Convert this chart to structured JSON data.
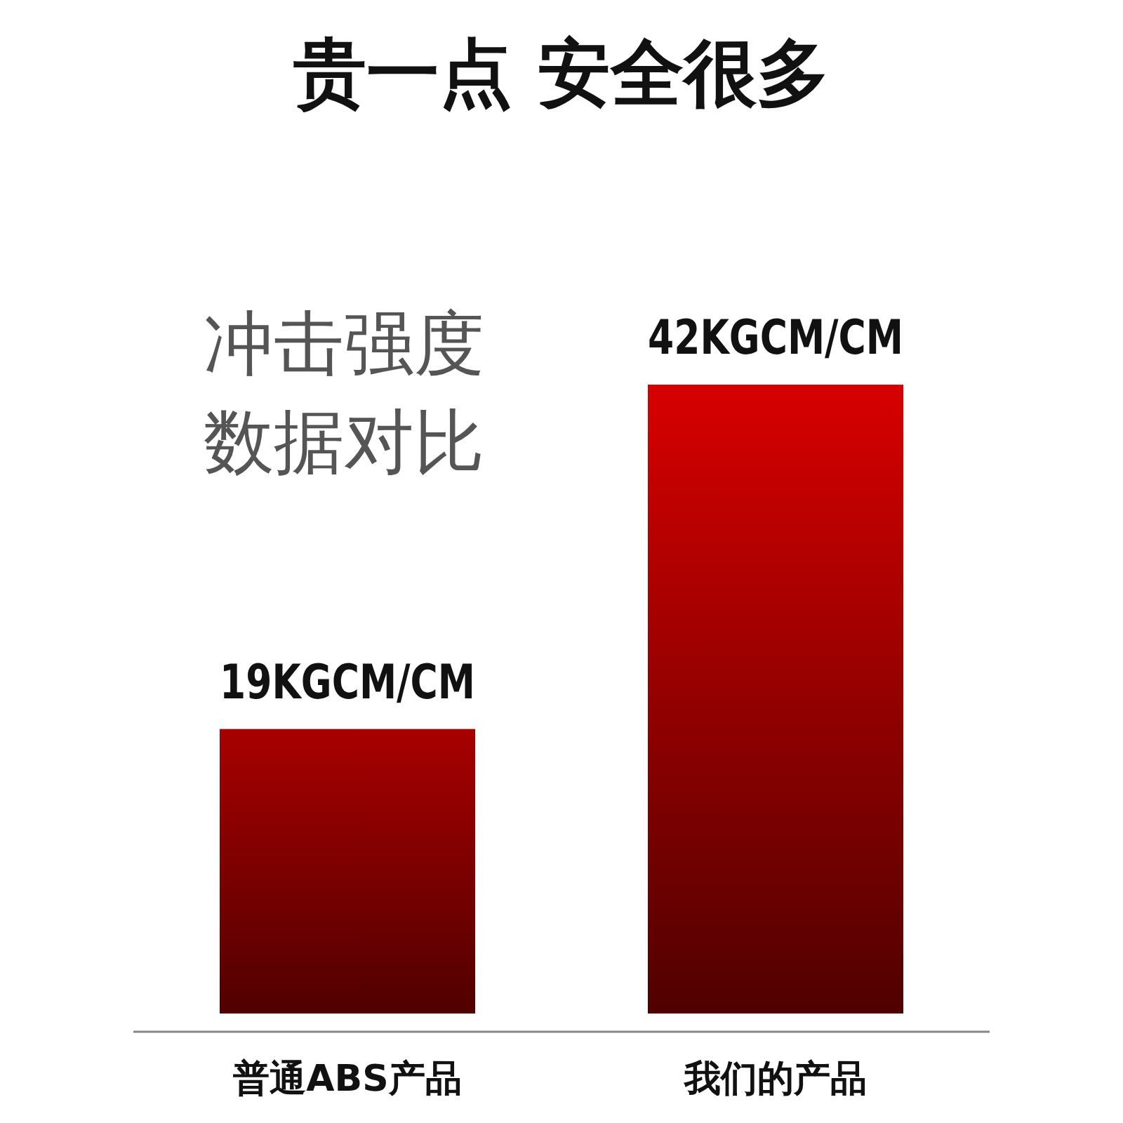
{
  "chart_data": {
    "type": "bar",
    "title": "贵一点 安全很多",
    "subtitle": "冲击强度数据对比",
    "categories": [
      "普通ABS产品",
      "我们的产品"
    ],
    "values": [
      19,
      42
    ],
    "colors": [
      "#a80000",
      "#d80000"
    ],
    "value_labels": [
      "19KGCM/CM",
      "42KGCM/CM"
    ]
  }
}
